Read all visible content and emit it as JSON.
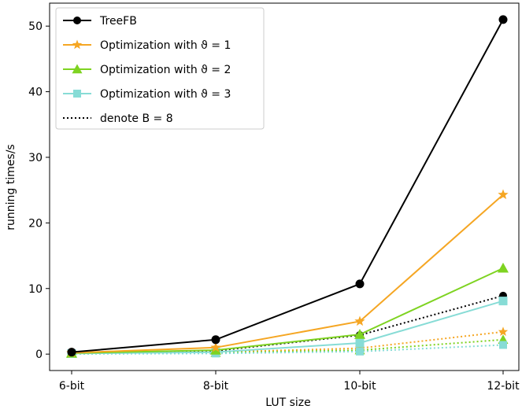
{
  "chart_data": {
    "type": "line",
    "xlabel": "LUT size",
    "ylabel": "running times/s",
    "categories": [
      "6-bit",
      "8-bit",
      "10-bit",
      "12-bit"
    ],
    "ylim": [
      -2.5,
      53.5
    ],
    "yticks": [
      0,
      10,
      20,
      30,
      40,
      50
    ],
    "grid": false,
    "legend_position": "top-left",
    "series": [
      {
        "name": "TreeFB",
        "color": "#000000",
        "marker": "circle",
        "linestyle": "solid",
        "values": [
          0.3,
          2.2,
          10.7,
          51.0
        ]
      },
      {
        "name": "Optimization with ϑ = 1",
        "color": "#f5a623",
        "marker": "star",
        "linestyle": "solid",
        "values": [
          0.2,
          1.0,
          5.0,
          24.3
        ]
      },
      {
        "name": "Optimization with ϑ = 2",
        "color": "#7ed321",
        "marker": "triangle",
        "linestyle": "solid",
        "values": [
          0.15,
          0.6,
          3.0,
          13.1
        ]
      },
      {
        "name": "Optimization with ϑ = 3",
        "color": "#87dcd6",
        "marker": "square",
        "linestyle": "solid",
        "values": [
          0.1,
          0.3,
          1.7,
          8.1
        ]
      },
      {
        "name": "",
        "color": "#000000",
        "marker": "circle",
        "linestyle": "dotted",
        "values": [
          0.1,
          0.5,
          2.9,
          8.9
        ]
      },
      {
        "name": "",
        "color": "#f5a623",
        "marker": "star",
        "linestyle": "dotted",
        "values": [
          0.05,
          0.3,
          0.9,
          3.4
        ]
      },
      {
        "name": "",
        "color": "#7ed321",
        "marker": "triangle",
        "linestyle": "dotted",
        "values": [
          0.04,
          0.2,
          0.6,
          2.2
        ]
      },
      {
        "name": "",
        "color": "#87dcd6",
        "marker": "square",
        "linestyle": "dotted",
        "values": [
          0.03,
          0.1,
          0.4,
          1.4
        ]
      }
    ],
    "legend": [
      {
        "label": "TreeFB",
        "color": "#000000",
        "marker": "circle",
        "linestyle": "solid"
      },
      {
        "label": "Optimization with ϑ = 1",
        "color": "#f5a623",
        "marker": "star",
        "linestyle": "solid"
      },
      {
        "label": "Optimization with ϑ = 2",
        "color": "#7ed321",
        "marker": "triangle",
        "linestyle": "solid"
      },
      {
        "label": "Optimization with ϑ = 3",
        "color": "#87dcd6",
        "marker": "square",
        "linestyle": "solid"
      },
      {
        "label": "denote B = 8",
        "color": "#000000",
        "marker": "none",
        "linestyle": "dotted"
      }
    ]
  }
}
